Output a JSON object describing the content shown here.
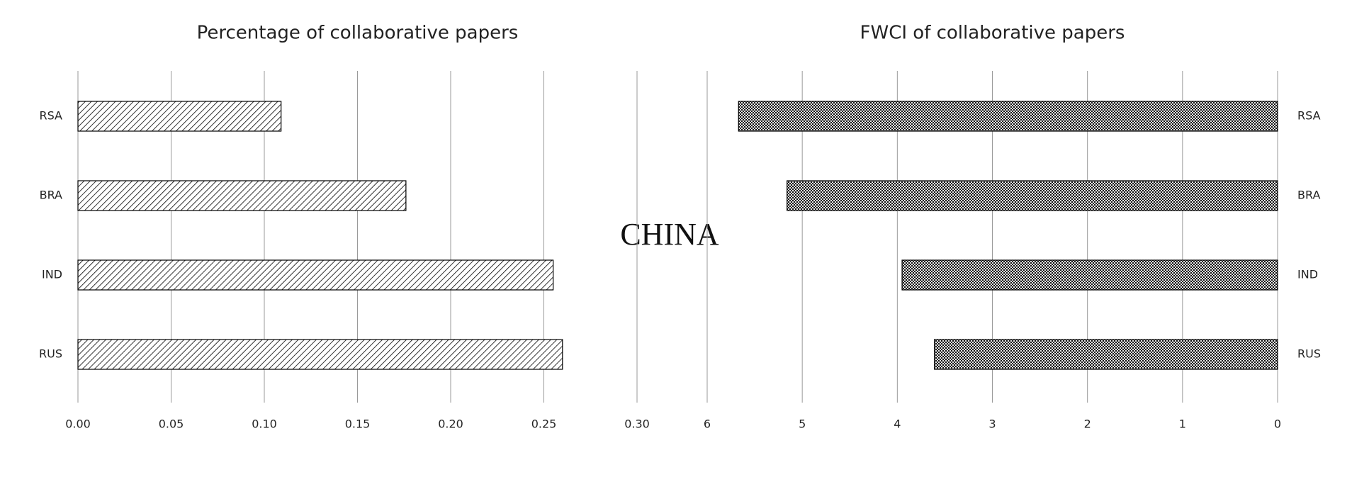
{
  "chart_data": [
    {
      "type": "bar",
      "orientation": "horizontal",
      "title": "Percentage of collaborative papers",
      "categories": [
        "RSA",
        "BRA",
        "IND",
        "RUS"
      ],
      "values": [
        0.109,
        0.176,
        0.255,
        0.26
      ],
      "pattern": "hatch",
      "color": "#000000",
      "label_side": "left",
      "xlim": [
        0,
        0.3
      ],
      "xticks": [
        {
          "value": 0,
          "label": "0.00"
        },
        0.05,
        {
          "value": 0.1,
          "label": "0.10"
        },
        0.15,
        {
          "value": 0.2,
          "label": "0.20"
        },
        0.25,
        {
          "value": 0.3,
          "label": "0.30"
        }
      ],
      "grid": true
    },
    {
      "type": "bar",
      "orientation": "horizontal",
      "title": "FWCI of collaborative papers",
      "categories": [
        "RSA",
        "BRA",
        "IND",
        "RUS"
      ],
      "values": [
        5.67,
        5.16,
        3.95,
        3.61
      ],
      "pattern": "checker",
      "color": "#000000",
      "label_side": "right",
      "xlim": [
        6,
        0
      ],
      "xticks": [
        6,
        5,
        4,
        3,
        2,
        1,
        0
      ],
      "grid": true
    }
  ],
  "center_label": "CHINA"
}
